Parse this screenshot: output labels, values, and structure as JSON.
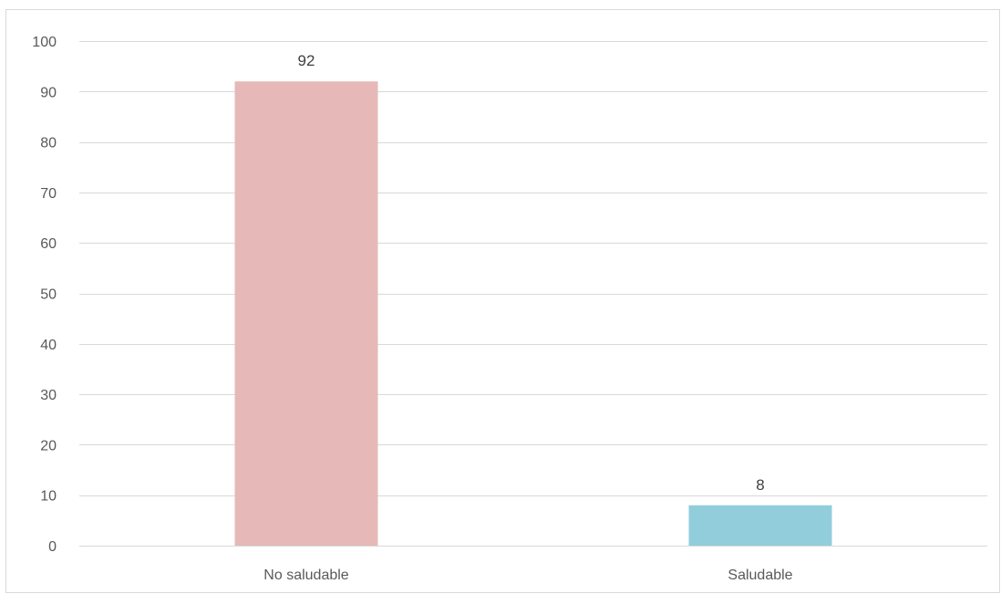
{
  "chart_data": {
    "type": "bar",
    "title": "",
    "xlabel": "",
    "ylabel": "",
    "categories": [
      "No saludable",
      "Saludable"
    ],
    "values": [
      92,
      8
    ],
    "data_labels": [
      "92",
      "8"
    ],
    "bar_colors": [
      "#e6b8b7",
      "#92cddc"
    ],
    "ylim": [
      0,
      100
    ],
    "yticks": [
      0,
      10,
      20,
      30,
      40,
      50,
      60,
      70,
      80,
      90,
      100
    ],
    "grid": true,
    "legend": "none"
  }
}
